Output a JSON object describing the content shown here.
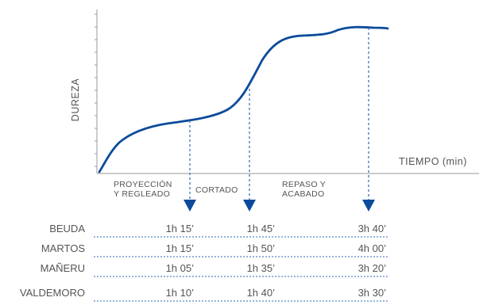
{
  "chart_data": {
    "type": "line",
    "xlabel": "TIEMPO (min)",
    "ylabel": "DUREZA",
    "grid": false,
    "curve_color": "#0b4b9b",
    "guide_color": "#2d67b8",
    "row_line_color": "#2d67b8",
    "phases": [
      {
        "line1": "PROYECCIÓN",
        "line2": "Y REGLEADO"
      },
      {
        "line1": "CORTADO",
        "line2": ""
      },
      {
        "line1": "REPASO Y",
        "line2": "ACABADO"
      }
    ],
    "rows": [
      {
        "name": "BEUDA",
        "values": [
          "1h 15’",
          "1h 45’",
          "3h 40’"
        ]
      },
      {
        "name": "MARTOS",
        "values": [
          "1h 15’",
          "1h 50’",
          "4h 00’"
        ]
      },
      {
        "name": "MAÑERU",
        "values": [
          "1h 05’",
          "1h 35’",
          "3h 20’"
        ]
      },
      {
        "name": "VALDEMORO",
        "values": [
          "1h 10’",
          "1h 40’",
          "3h 30’"
        ]
      }
    ]
  }
}
